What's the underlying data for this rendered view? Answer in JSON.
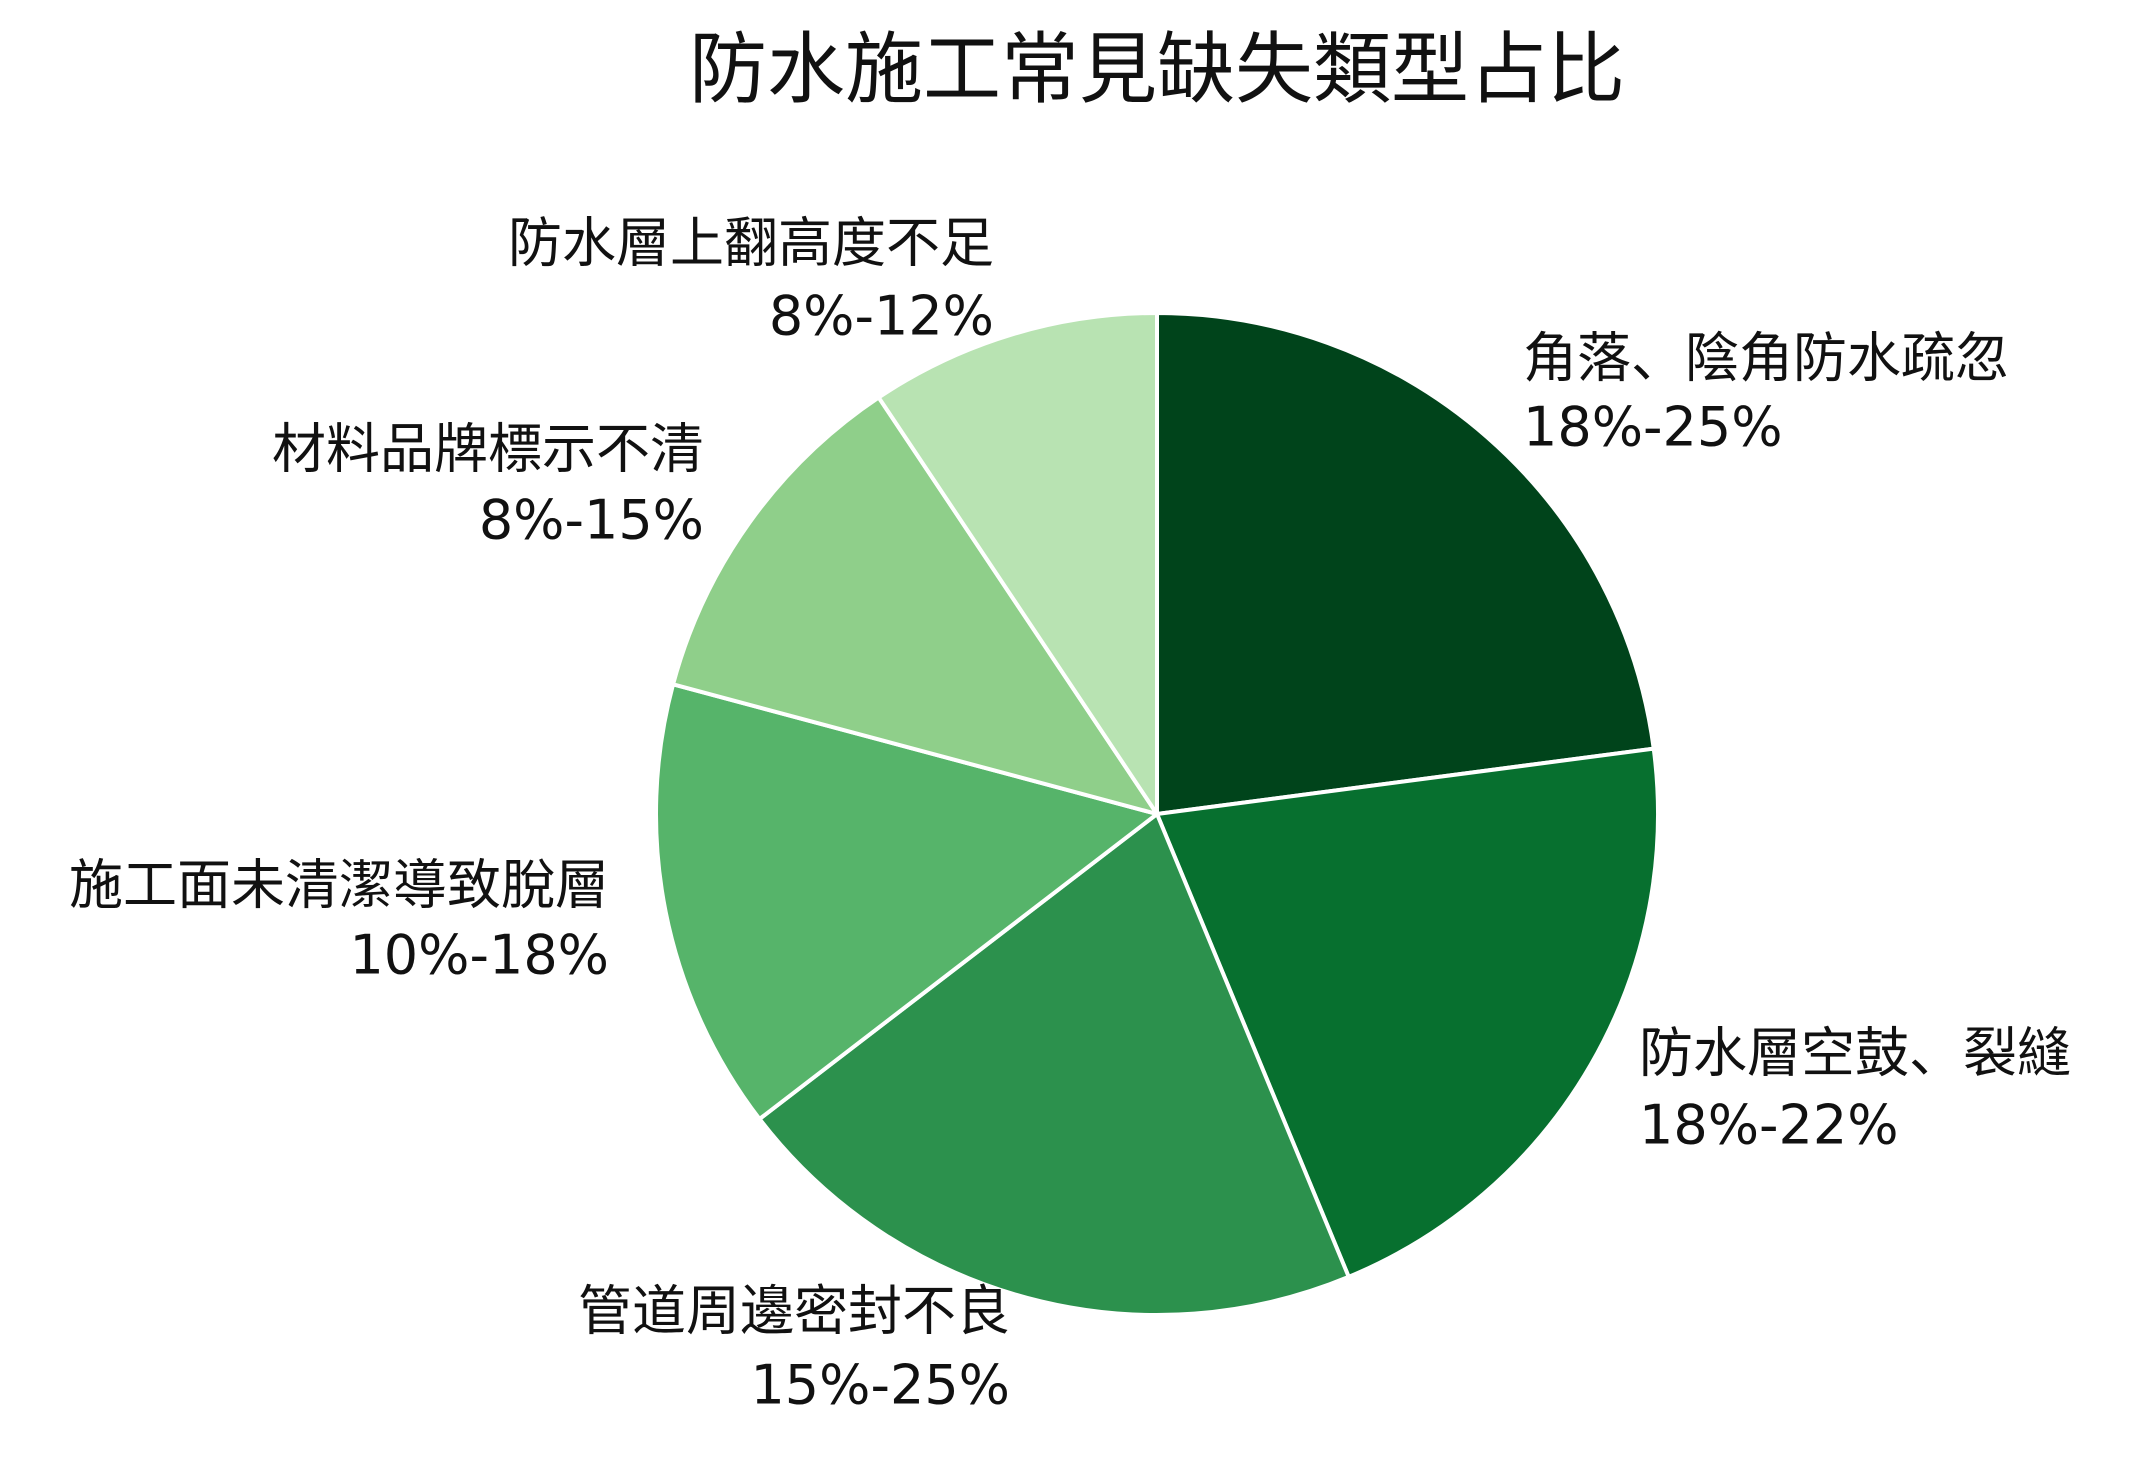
{
  "chart_data": {
    "type": "pie",
    "title": "防水施工常見缺失類型占比",
    "categories": [
      "角落、陰角防水疏忽",
      "防水層空鼓、裂縫",
      "管道周邊密封不良",
      "施工面未清潔導致脫層",
      "材料品牌標示不清",
      "防水層上翻高度不足"
    ],
    "range_labels": [
      "18%-25%",
      "18%-22%",
      "15%-25%",
      "10%-18%",
      "8%-15%",
      "8%-12%"
    ],
    "values": [
      22,
      20,
      20,
      14,
      11,
      9
    ],
    "colors": [
      "#00441b",
      "#07702f",
      "#2c914d",
      "#56b46a",
      "#8fcf8a",
      "#b8e3b2"
    ]
  }
}
